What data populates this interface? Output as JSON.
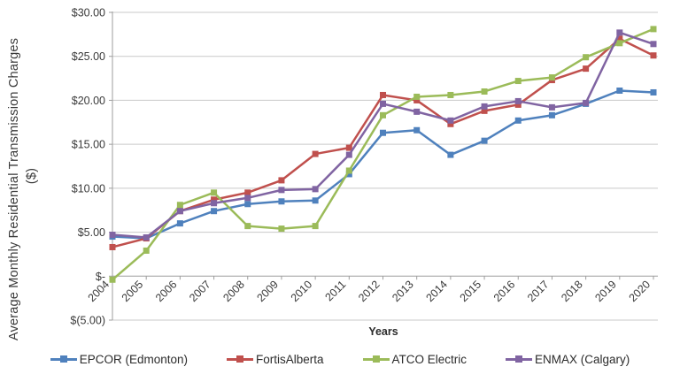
{
  "chart_data": {
    "type": "line",
    "title": "",
    "xlabel": "Years",
    "ylabel_line1": "Average Monthly Residential Transmission  Charges",
    "ylabel_line2": "($)",
    "ylim": [
      -5,
      30
    ],
    "grid": true,
    "legend_position": "bottom",
    "x_categories": [
      "2004",
      "2005",
      "2006",
      "2007",
      "2008",
      "2009",
      "2010",
      "2011",
      "2012",
      "2013",
      "2014",
      "2015",
      "2016",
      "2017",
      "2018",
      "2019",
      "2020"
    ],
    "y_ticks": [
      {
        "value": 30,
        "label": "$30.00"
      },
      {
        "value": 25,
        "label": "$25.00"
      },
      {
        "value": 20,
        "label": "$20.00"
      },
      {
        "value": 15,
        "label": "$15.00"
      },
      {
        "value": 10,
        "label": "$10.00"
      },
      {
        "value": 5,
        "label": "$5.00"
      },
      {
        "value": 0,
        "label": "$-"
      },
      {
        "value": -5,
        "label": "$(5.00)"
      }
    ],
    "series": [
      {
        "name": "EPCOR (Edmonton)",
        "slug": "epcor-edmonton",
        "color": "#4F81BD",
        "values": [
          4.5,
          4.3,
          6.0,
          7.4,
          8.2,
          8.5,
          8.6,
          11.6,
          16.3,
          16.6,
          13.8,
          15.4,
          17.7,
          18.3,
          19.6,
          21.1,
          20.9
        ]
      },
      {
        "name": "FortisAlberta",
        "slug": "fortisalberta",
        "color": "#C0504D",
        "values": [
          3.3,
          4.3,
          7.4,
          8.7,
          9.5,
          10.9,
          13.9,
          14.6,
          20.6,
          20.0,
          17.3,
          18.8,
          19.5,
          22.3,
          23.6,
          27.0,
          25.1
        ]
      },
      {
        "name": "ATCO Electric",
        "slug": "atco-electric",
        "color": "#9BBB59",
        "values": [
          -0.4,
          2.9,
          8.1,
          9.5,
          5.7,
          5.4,
          5.7,
          12.0,
          18.3,
          20.4,
          20.6,
          21.0,
          22.2,
          22.6,
          24.9,
          26.5,
          28.1
        ]
      },
      {
        "name": "ENMAX (Calgary)",
        "slug": "enmax-calgary",
        "color": "#8064A2",
        "values": [
          4.7,
          4.4,
          7.4,
          8.3,
          8.9,
          9.8,
          9.9,
          13.8,
          19.6,
          18.7,
          17.7,
          19.3,
          19.9,
          19.2,
          19.7,
          27.7,
          26.4
        ]
      }
    ],
    "colors": {
      "gridline": "#C9C9C9",
      "axis": "#9E9E9E",
      "tick_text": "#3a3a3a"
    }
  }
}
